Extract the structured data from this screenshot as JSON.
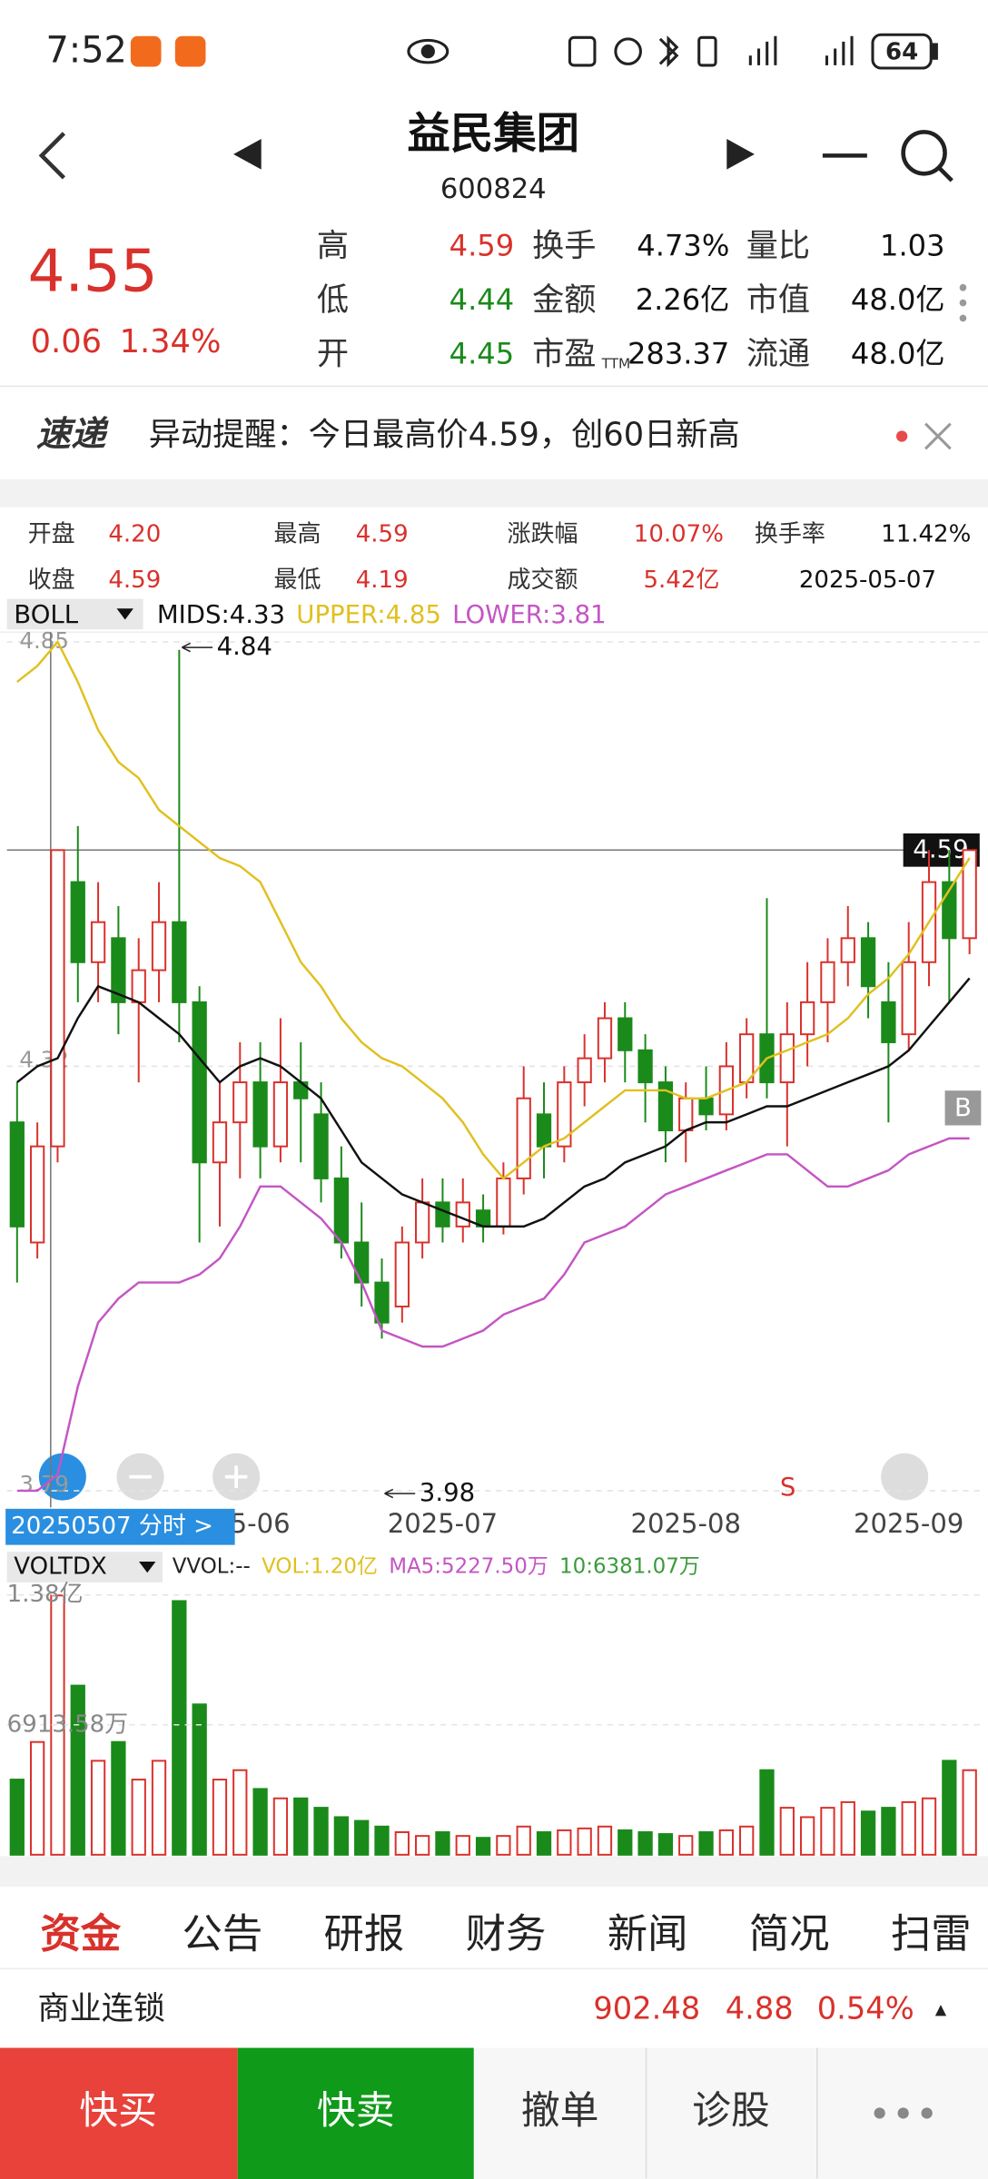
{
  "status_bar": {
    "time": "7:52",
    "battery": "64"
  },
  "header": {
    "title": "益民集团",
    "code": "600824"
  },
  "quote": {
    "price": "4.55",
    "change": "0.06",
    "change_pct": "1.34%",
    "fields": [
      [
        {
          "label": "高",
          "value": "4.59",
          "color": "#d9312b"
        },
        {
          "label": "换手",
          "value": "4.73%"
        },
        {
          "label": "量比",
          "value": "1.03"
        }
      ],
      [
        {
          "label": "低",
          "value": "4.44",
          "color": "#1a8a1a"
        },
        {
          "label": "金额",
          "value": "2.26亿"
        },
        {
          "label": "市值",
          "value": "48.0亿"
        }
      ],
      [
        {
          "label": "开",
          "value": "4.45",
          "color": "#1a8a1a"
        },
        {
          "label": "市盈",
          "sub": "TTM",
          "value": "283.37"
        },
        {
          "label": "流通",
          "value": "48.0亿"
        }
      ]
    ]
  },
  "notice": {
    "badge": "速递",
    "text": "异动提醒：今日最高价4.59，创60日新高"
  },
  "day_info": [
    [
      {
        "label": "开盘",
        "value": "4.20"
      },
      {
        "label": "最高",
        "value": "4.59"
      },
      {
        "label": "涨跌幅",
        "value": "10.07%"
      },
      {
        "label": "换手率",
        "value": "11.42%"
      }
    ],
    [
      {
        "label": "收盘",
        "value": "4.59"
      },
      {
        "label": "最低",
        "value": "4.19"
      },
      {
        "label": "成交额",
        "value": "5.42亿"
      },
      {
        "value": "2025-05-07"
      }
    ]
  ],
  "chart_data": [
    {
      "type": "candlestick",
      "indicator": "BOLL",
      "categories": [
        null,
        null,
        null,
        null,
        null,
        null,
        null,
        null,
        null,
        null,
        null,
        null,
        "5-06",
        null,
        null,
        null,
        null,
        null,
        null,
        null,
        null,
        "2025-07",
        null,
        null,
        null,
        null,
        null,
        null,
        null,
        null,
        null,
        null,
        null,
        "2025-08",
        null,
        null,
        null,
        null,
        null,
        null,
        null,
        null,
        null,
        null,
        "2025-09",
        null,
        null,
        null
      ],
      "open": [
        4.25,
        4.1,
        4.22,
        4.55,
        4.45,
        4.48,
        4.4,
        4.44,
        4.5,
        4.4,
        4.2,
        4.25,
        4.3,
        4.22,
        4.3,
        4.26,
        4.18,
        4.1,
        4.05,
        4.02,
        4.1,
        4.15,
        4.12,
        4.14,
        4.12,
        4.18,
        4.26,
        4.22,
        4.3,
        4.33,
        4.38,
        4.34,
        4.3,
        4.24,
        4.28,
        4.26,
        4.3,
        4.36,
        4.3,
        4.36,
        4.4,
        4.45,
        4.48,
        4.4,
        4.36,
        4.45,
        4.55,
        4.48
      ],
      "high": [
        4.3,
        4.25,
        4.59,
        4.62,
        4.55,
        4.52,
        4.48,
        4.55,
        4.84,
        4.42,
        4.3,
        4.35,
        4.35,
        4.38,
        4.35,
        4.3,
        4.22,
        4.15,
        4.08,
        4.12,
        4.18,
        4.18,
        4.18,
        4.16,
        4.2,
        4.32,
        4.3,
        4.32,
        4.36,
        4.4,
        4.4,
        4.36,
        4.32,
        4.3,
        4.32,
        4.35,
        4.38,
        4.53,
        4.4,
        4.45,
        4.48,
        4.52,
        4.5,
        4.45,
        4.5,
        4.59,
        4.59,
        4.59
      ],
      "low": [
        4.05,
        4.08,
        4.2,
        4.4,
        4.4,
        4.36,
        4.3,
        4.4,
        4.35,
        4.1,
        4.12,
        4.18,
        4.18,
        4.2,
        4.2,
        4.15,
        4.08,
        4.02,
        3.98,
        4.0,
        4.08,
        4.1,
        4.1,
        4.1,
        4.11,
        4.16,
        4.18,
        4.2,
        4.27,
        4.3,
        4.3,
        4.25,
        4.2,
        4.2,
        4.24,
        4.24,
        4.28,
        4.28,
        4.22,
        4.32,
        4.35,
        4.42,
        4.38,
        4.25,
        4.34,
        4.42,
        4.4,
        4.46
      ],
      "close": [
        4.12,
        4.22,
        4.59,
        4.45,
        4.5,
        4.4,
        4.44,
        4.5,
        4.4,
        4.2,
        4.25,
        4.3,
        4.22,
        4.3,
        4.28,
        4.18,
        4.1,
        4.05,
        4.0,
        4.1,
        4.15,
        4.12,
        4.15,
        4.12,
        4.18,
        4.28,
        4.22,
        4.3,
        4.33,
        4.38,
        4.34,
        4.3,
        4.24,
        4.28,
        4.26,
        4.32,
        4.36,
        4.3,
        4.36,
        4.4,
        4.45,
        4.48,
        4.42,
        4.35,
        4.45,
        4.55,
        4.48,
        4.59
      ],
      "series": [
        {
          "name": "MIDS:4.33",
          "color": "#111111",
          "values": [
            4.3,
            4.32,
            4.33,
            4.38,
            4.42,
            4.41,
            4.4,
            4.38,
            4.36,
            4.33,
            4.3,
            4.32,
            4.33,
            4.32,
            4.3,
            4.28,
            4.24,
            4.2,
            4.18,
            4.16,
            4.15,
            4.14,
            4.13,
            4.12,
            4.12,
            4.12,
            4.13,
            4.15,
            4.17,
            4.18,
            4.2,
            4.21,
            4.22,
            4.24,
            4.25,
            4.25,
            4.26,
            4.27,
            4.27,
            4.28,
            4.29,
            4.3,
            4.31,
            4.32,
            4.34,
            4.37,
            4.4,
            4.43
          ]
        },
        {
          "name": "UPPER:4.85",
          "color": "#e0c020",
          "values": [
            4.8,
            4.82,
            4.85,
            4.8,
            4.74,
            4.7,
            4.68,
            4.64,
            4.62,
            4.6,
            4.58,
            4.57,
            4.55,
            4.5,
            4.45,
            4.42,
            4.38,
            4.35,
            4.33,
            4.32,
            4.3,
            4.28,
            4.25,
            4.21,
            4.18,
            4.2,
            4.22,
            4.23,
            4.25,
            4.27,
            4.29,
            4.29,
            4.29,
            4.28,
            4.28,
            4.29,
            4.3,
            4.33,
            4.34,
            4.35,
            4.36,
            4.38,
            4.41,
            4.43,
            4.46,
            4.5,
            4.54,
            4.58
          ]
        },
        {
          "name": "LOWER:3.81",
          "color": "#c455c4",
          "values": [
            3.79,
            3.79,
            3.81,
            3.92,
            4.0,
            4.03,
            4.05,
            4.05,
            4.05,
            4.06,
            4.08,
            4.12,
            4.17,
            4.17,
            4.15,
            4.13,
            4.1,
            4.05,
            3.99,
            3.98,
            3.97,
            3.97,
            3.98,
            3.99,
            4.01,
            4.02,
            4.03,
            4.06,
            4.1,
            4.11,
            4.12,
            4.14,
            4.16,
            4.17,
            4.18,
            4.19,
            4.2,
            4.21,
            4.21,
            4.19,
            4.17,
            4.17,
            4.18,
            4.19,
            4.21,
            4.22,
            4.23,
            4.23
          ]
        }
      ],
      "ylim": [
        3.79,
        4.85
      ],
      "yticks": [
        3.79,
        4.32,
        4.85
      ],
      "max_label": "4.84",
      "min_label": "3.98",
      "crosshair": 4.59,
      "signals": [
        "B",
        "S"
      ],
      "overlay": "20250507 分时 >"
    },
    {
      "type": "bar",
      "indicator": "VOLTDX",
      "legend": [
        {
          "text": "VVOL:--",
          "color": "#222222"
        },
        {
          "text": "VOL:1.20亿",
          "color": "#e0c020"
        },
        {
          "text": "MA5:5227.50万",
          "color": "#c455c4"
        },
        {
          "text": "10:6381.07万",
          "color": "#3a9a3a"
        }
      ],
      "values": [
        4000,
        6000,
        13800,
        9000,
        5000,
        6000,
        4000,
        5000,
        13500,
        8000,
        4000,
        4500,
        3500,
        3000,
        3000,
        2500,
        2000,
        1800,
        1500,
        1200,
        1000,
        1200,
        1000,
        900,
        1000,
        1500,
        1200,
        1300,
        1400,
        1500,
        1300,
        1200,
        1100,
        1000,
        1200,
        1300,
        1500,
        4500,
        2500,
        2000,
        2500,
        2800,
        2300,
        2500,
        2800,
        3000,
        5000,
        4500
      ],
      "ylim": [
        0,
        13827.16
      ],
      "yticks": [
        {
          "value": 6913.58,
          "label": "6913.58万"
        },
        {
          "value": 13827.16,
          "label": "1.38亿"
        }
      ]
    }
  ],
  "tabs": [
    "资金",
    "公告",
    "研报",
    "财务",
    "新闻",
    "简况",
    "扫雷"
  ],
  "sector": {
    "name": "商业连锁",
    "index": "902.48",
    "change": "4.88",
    "pct": "0.54%"
  },
  "actions": [
    "快买",
    "快卖",
    "撤单",
    "诊股"
  ]
}
